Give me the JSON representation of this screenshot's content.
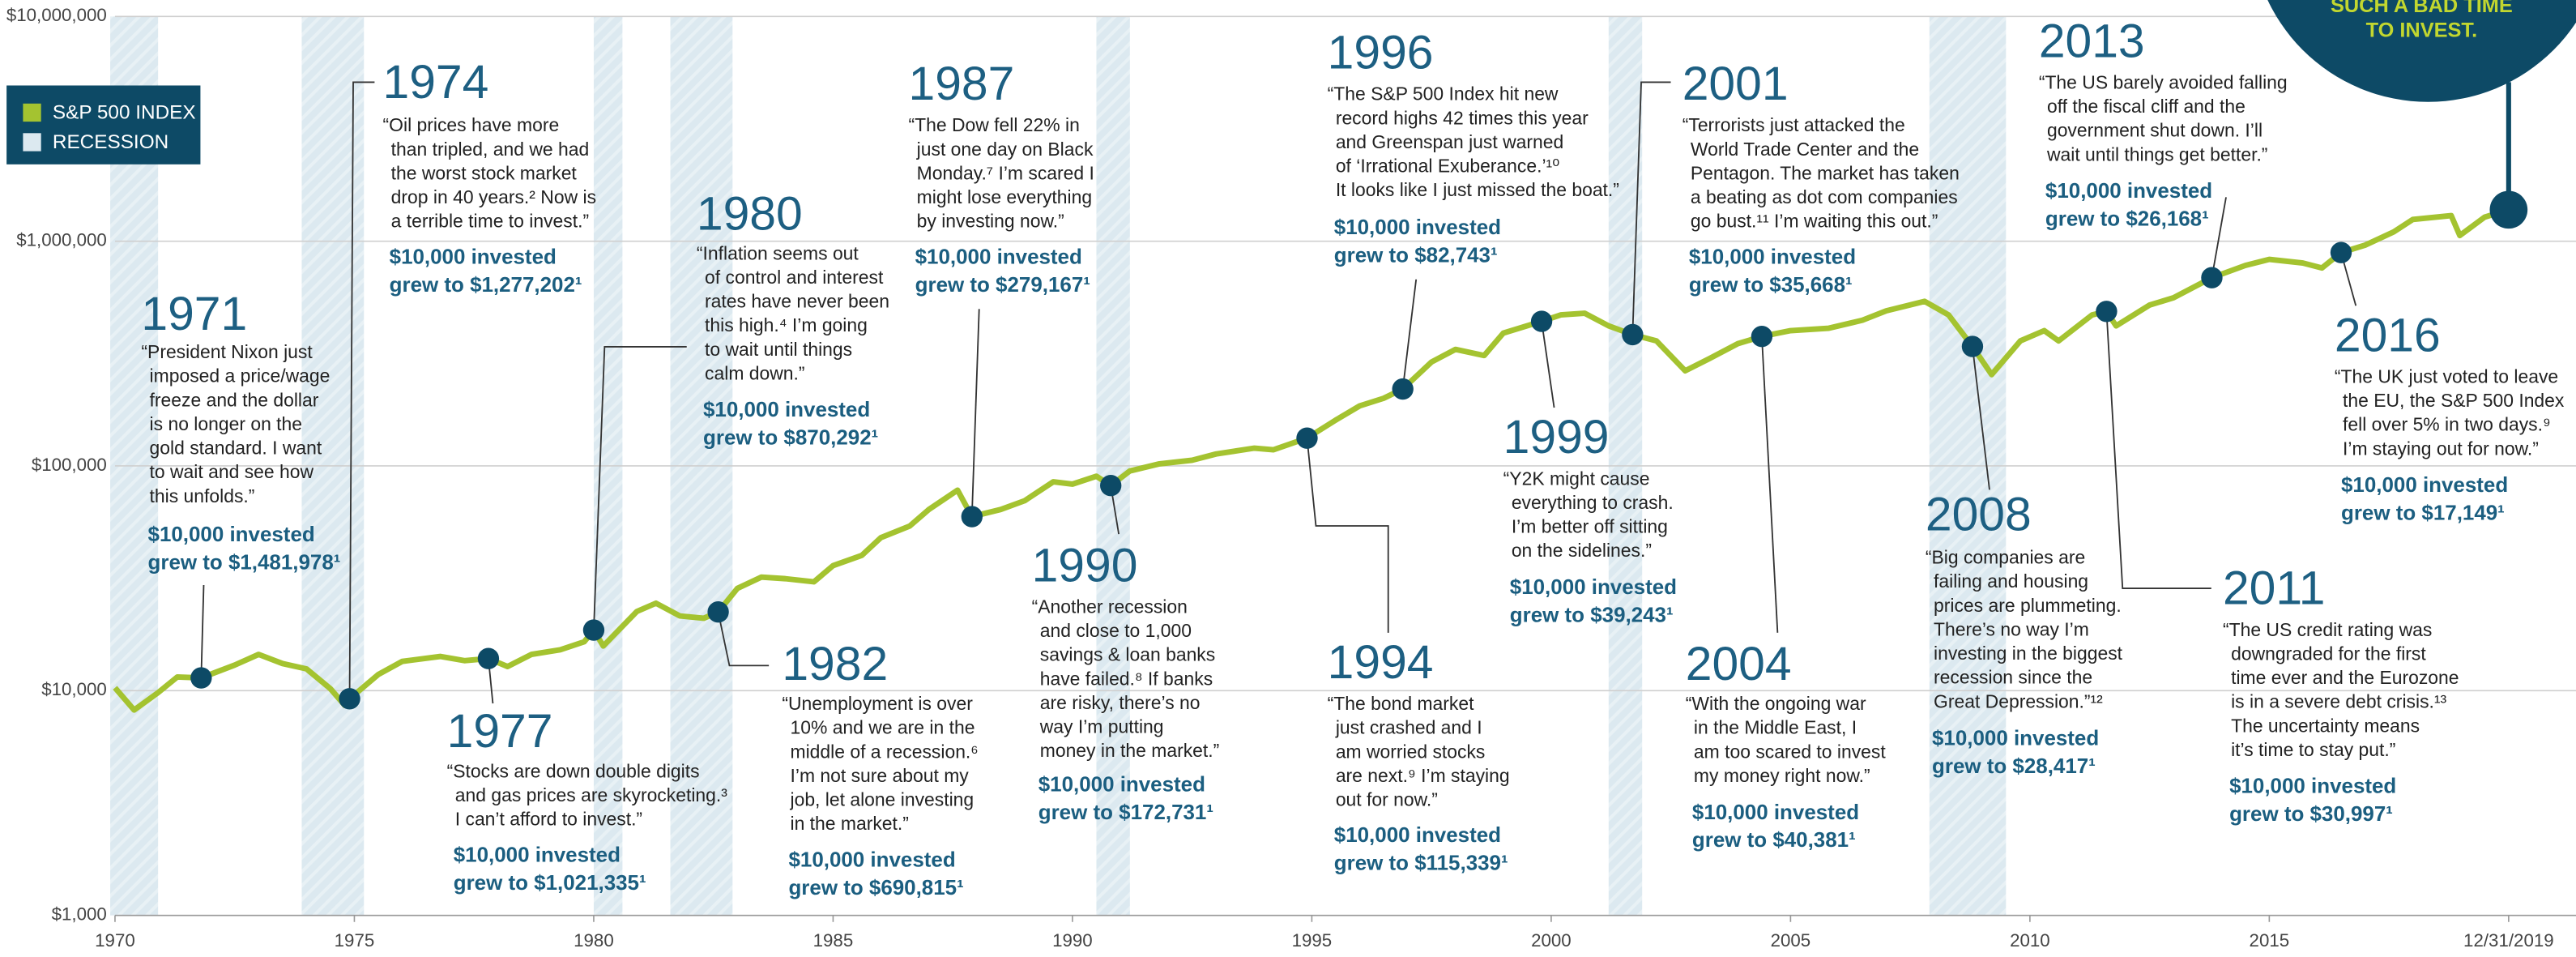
{
  "chart_data": {
    "type": "line",
    "log_scale": true,
    "grid": true,
    "legend": "upper left",
    "xlim": [
      1970,
      2020
    ],
    "xticks": [
      1970,
      1975,
      1980,
      1985,
      1990,
      1995,
      2000,
      2005,
      2010,
      2015,
      {
        "value": 2020,
        "label": "12/31/2019"
      }
    ],
    "ylim": [
      1000,
      10000000
    ],
    "yticks": [
      {
        "value": 1000,
        "label": "$1,000"
      },
      {
        "value": 10000,
        "label": "$10,000"
      },
      {
        "value": 100000,
        "label": "$100,000"
      },
      {
        "value": 1000000,
        "label": "$1,000,000"
      },
      {
        "value": 10000000,
        "label": "$10,000,000"
      }
    ],
    "x": [
      1970.0,
      1970.4,
      1970.9,
      1971.3,
      1971.8,
      1972.5,
      1973.0,
      1973.5,
      1974.0,
      1974.5,
      1974.8,
      1974.9,
      1975.5,
      1976.0,
      1976.8,
      1977.3,
      1977.8,
      1978.2,
      1978.7,
      1979.3,
      1979.8,
      1980.0,
      1980.2,
      1980.9,
      1981.3,
      1981.8,
      1982.3,
      1982.6,
      1983.0,
      1983.5,
      1984.0,
      1984.6,
      1985.0,
      1985.6,
      1986.0,
      1986.6,
      1987.0,
      1987.6,
      1987.9,
      1988.5,
      1989.0,
      1989.6,
      1990.0,
      1990.5,
      1990.8,
      1991.2,
      1991.8,
      1992.5,
      1993.0,
      1993.8,
      1994.2,
      1994.9,
      1995.5,
      1996.0,
      1996.5,
      1996.9,
      1997.5,
      1998.0,
      1998.6,
      1999.0,
      1999.8,
      2000.2,
      2000.7,
      2001.2,
      2001.7,
      2002.2,
      2002.8,
      2003.3,
      2003.9,
      2004.4,
      2005.0,
      2005.8,
      2006.5,
      2007.0,
      2007.8,
      2008.3,
      2008.8,
      2009.2,
      2009.8,
      2010.3,
      2010.6,
      2011.3,
      2011.6,
      2011.8,
      2012.5,
      2013.0,
      2013.8,
      2014.5,
      2015.0,
      2015.7,
      2016.1,
      2016.5,
      2017.0,
      2017.6,
      2018.0,
      2018.8,
      2018.98,
      2019.5,
      2020.0
    ],
    "series": [
      {
        "name": "S&P 500 INDEX",
        "color": "#a4c330",
        "values": [
          10300,
          8200,
          9800,
          11500,
          11400,
          13000,
          14500,
          13200,
          12500,
          10200,
          8600,
          9200,
          11800,
          13500,
          14200,
          13600,
          13900,
          12800,
          14500,
          15200,
          16500,
          18600,
          15800,
          22500,
          24500,
          21500,
          21000,
          22400,
          28500,
          32000,
          31500,
          30500,
          36000,
          40000,
          48000,
          54000,
          64000,
          78000,
          59500,
          64000,
          70000,
          85000,
          83000,
          90000,
          81800,
          95000,
          102000,
          106000,
          113000,
          120000,
          118000,
          133000,
          160000,
          185000,
          200000,
          220000,
          290000,
          330000,
          310000,
          390000,
          440000,
          470000,
          478000,
          420000,
          384000,
          360000,
          265000,
          300000,
          350000,
          377000,
          400000,
          410000,
          445000,
          490000,
          540000,
          470000,
          340000,
          255000,
          360000,
          400000,
          360000,
          470000,
          487000,
          420000,
          520000,
          560000,
          688000,
          780000,
          830000,
          800000,
          760000,
          890000,
          960000,
          1100000,
          1250000,
          1300000,
          1060000,
          1280000,
          1380000
        ]
      }
    ],
    "recession": {
      "name": "RECESSION",
      "color": "#dce9f0",
      "spans": [
        [
          1969.9,
          1970.9
        ],
        [
          1973.9,
          1975.2
        ],
        [
          1980.0,
          1980.6
        ],
        [
          1981.6,
          1982.9
        ],
        [
          1990.5,
          1991.2
        ],
        [
          2001.2,
          2001.9
        ],
        [
          2007.9,
          2009.5
        ]
      ]
    },
    "marker_color": "#0d4a66",
    "corner_note": [
      "SUCH A BAD TIME",
      "TO INVEST."
    ],
    "events": [
      {
        "year": "1971",
        "x": 1971.8,
        "value": 11400,
        "quote": [
          "“President Nixon just",
          "imposed a price/wage",
          "freeze and the dollar",
          "is no longer on the",
          "gold standard. I want",
          "to wait and see how",
          "this unfolds.”"
        ],
        "invested": [
          "$10,000 invested",
          "grew to $1,481,978¹"
        ]
      },
      {
        "year": "1974",
        "x": 1974.9,
        "value": 9200,
        "quote": [
          "“Oil prices have more",
          "than tripled, and we had",
          "the worst stock market",
          "drop in 40 years.² Now is",
          "a terrible time to invest.”"
        ],
        "invested": [
          "$10,000 invested",
          "grew to $1,277,202¹"
        ]
      },
      {
        "year": "1977",
        "x": 1977.8,
        "value": 13900,
        "quote": [
          "“Stocks are down double digits",
          "and gas prices are skyrocketing.³",
          "I can’t afford to invest.”"
        ],
        "invested": [
          "$10,000 invested",
          "grew to $1,021,335¹"
        ]
      },
      {
        "year": "1980",
        "x": 1980.0,
        "value": 18600,
        "quote": [
          "“Inflation seems out",
          "of control and interest",
          "rates have never been",
          "this high.⁴ I’m going",
          "to wait until things",
          "calm down.”"
        ],
        "invested": [
          "$10,000 invested",
          "grew to $870,292¹"
        ]
      },
      {
        "year": "1982",
        "x": 1982.6,
        "value": 22400,
        "quote": [
          "“Unemployment is over",
          "10% and we are in the",
          "middle of a recession.⁶",
          "I’m not sure about my",
          "job, let alone investing",
          "in the market.”"
        ],
        "invested": [
          "$10,000 invested",
          "grew to $690,815¹"
        ]
      },
      {
        "year": "1987",
        "x": 1987.9,
        "value": 59500,
        "quote": [
          "“The Dow fell 22% in",
          "just one day on Black",
          "Monday.⁷ I’m scared I",
          "might lose everything",
          "by investing now.”"
        ],
        "invested": [
          "$10,000 invested",
          "grew to $279,167¹"
        ]
      },
      {
        "year": "1990",
        "x": 1990.8,
        "value": 81800,
        "quote": [
          "“Another recession",
          "and close to 1,000",
          "savings & loan banks",
          "have failed.⁸ If banks",
          "are risky, there’s no",
          "way I’m putting",
          "money in the market.”"
        ],
        "invested": [
          "$10,000 invested",
          "grew to $172,731¹"
        ]
      },
      {
        "year": "1994",
        "x": 1994.9,
        "value": 133000,
        "quote": [
          "“The bond market",
          "just crashed and I",
          "am worried stocks",
          "are next.⁹ I’m staying",
          "out for now.”"
        ],
        "invested": [
          "$10,000 invested",
          "grew to $115,339¹"
        ]
      },
      {
        "year": "1996",
        "x": 1996.9,
        "value": 220000,
        "quote": [
          "“The S&P 500 Index hit new",
          "record highs 42 times this year",
          "and Greenspan just warned",
          "of ‘Irrational Exuberance.’¹⁰",
          "It looks like I just missed the boat.”"
        ],
        "invested": [
          "$10,000 invested",
          "grew to $82,743¹"
        ]
      },
      {
        "year": "1999",
        "x": 1999.8,
        "value": 440000,
        "quote": [
          "“Y2K might cause",
          "everything to crash.",
          "I’m better off sitting",
          "on the sidelines.”"
        ],
        "invested": [
          "$10,000 invested",
          "grew to $39,243¹"
        ]
      },
      {
        "year": "2001",
        "x": 2001.7,
        "value": 384000,
        "quote": [
          "“Terrorists just attacked the",
          "World Trade Center and the",
          "Pentagon. The market has taken",
          "a beating as dot com companies",
          "go bust.¹¹ I’m waiting this out.”"
        ],
        "invested": [
          "$10,000 invested",
          "grew to $35,668¹"
        ]
      },
      {
        "year": "2004",
        "x": 2004.4,
        "value": 377000,
        "quote": [
          "“With the ongoing war",
          "in the Middle East, I",
          "am too scared to invest",
          "my money right now.”"
        ],
        "invested": [
          "$10,000 invested",
          "grew to $40,381¹"
        ]
      },
      {
        "year": "2008",
        "x": 2008.8,
        "value": 340000,
        "quote": [
          "“Big companies are",
          "failing and housing",
          "prices are plummeting.",
          "There’s no way I’m",
          "investing in the biggest",
          "recession since the",
          "Great Depression.”¹²"
        ],
        "invested": [
          "$10,000 invested",
          "grew to $28,417¹"
        ]
      },
      {
        "year": "2011",
        "x": 2011.6,
        "value": 487000,
        "quote": [
          "“The US credit rating was",
          "downgraded for the first",
          "time ever and the Eurozone",
          "is in a severe debt crisis.¹³",
          "The uncertainty means",
          "it’s time to stay put.”"
        ],
        "invested": [
          "$10,000 invested",
          "grew to $30,997¹"
        ]
      },
      {
        "year": "2013",
        "x": 2013.8,
        "value": 688000,
        "quote": [
          "“The US barely avoided falling",
          "off the fiscal cliff and the",
          "government shut down. I’ll",
          "wait until things get better.”"
        ],
        "invested": [
          "$10,000 invested",
          "grew to $26,168¹"
        ]
      },
      {
        "year": "2016",
        "x": 2016.5,
        "value": 890000,
        "quote": [
          "“The UK just voted to leave",
          "the EU, the S&P 500 Index",
          "fell over 5% in two days.⁹",
          "I’m staying out for now.”"
        ],
        "invested": [
          "$10,000 invested",
          "grew to $17,149¹"
        ]
      }
    ]
  }
}
